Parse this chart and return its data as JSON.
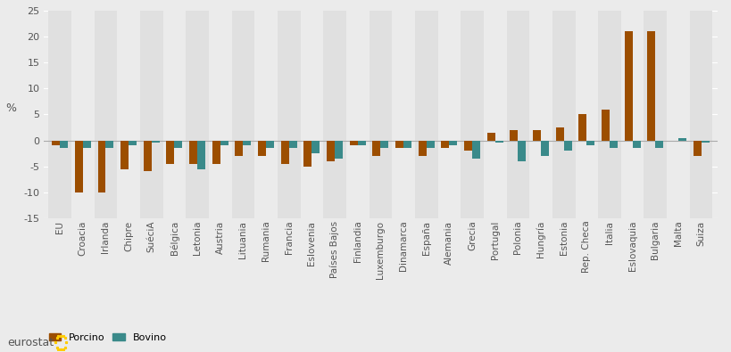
{
  "categories": [
    "EU",
    "Croacia",
    "Irlanda",
    "Chipre",
    "SuéciA",
    "Bélgica",
    "Letonia",
    "Austria",
    "Lituania",
    "Rumania",
    "Francia",
    "Eslovenia",
    "Países Bajos",
    "Finlandia",
    "Luxemburgo",
    "Dinamarca",
    "España",
    "Alemania",
    "Grecia",
    "Portugal",
    "Polonia",
    "Hungría",
    "Estonia",
    "Rep. Checa",
    "Italia",
    "Eslovaquia",
    "Bulgaria",
    "Malta",
    "Suiza"
  ],
  "porcino": [
    -1.0,
    -10.0,
    -10.0,
    -5.5,
    -6.0,
    -4.5,
    -4.5,
    -4.5,
    -3.0,
    -3.0,
    -4.5,
    -5.0,
    -4.0,
    -1.0,
    -3.0,
    -1.5,
    -3.0,
    -1.5,
    -2.0,
    1.5,
    2.0,
    2.0,
    2.5,
    5.0,
    6.0,
    21.0,
    21.0,
    0.0,
    -3.0
  ],
  "bovino": [
    -1.5,
    -1.5,
    -1.5,
    -1.0,
    -0.5,
    -1.5,
    -5.5,
    -1.0,
    -1.0,
    -1.5,
    -1.5,
    -2.5,
    -3.5,
    -1.0,
    -1.5,
    -1.5,
    -1.5,
    -1.0,
    -3.5,
    -0.5,
    -4.0,
    -3.0,
    -2.0,
    -1.0,
    -1.5,
    -1.5,
    -1.5,
    0.5,
    -0.5
  ],
  "porcino_color": "#9c4e00",
  "bovino_color": "#3a8a8a",
  "bg_color": "#ebebeb",
  "grid_color": "#ffffff",
  "ylabel": "%",
  "ylim": [
    -15,
    25
  ],
  "yticks": [
    -15,
    -10,
    -5,
    0,
    5,
    10,
    15,
    20,
    25
  ],
  "legend_porcino": "Porcino",
  "legend_bovino": "Bovino",
  "bar_width": 0.35
}
